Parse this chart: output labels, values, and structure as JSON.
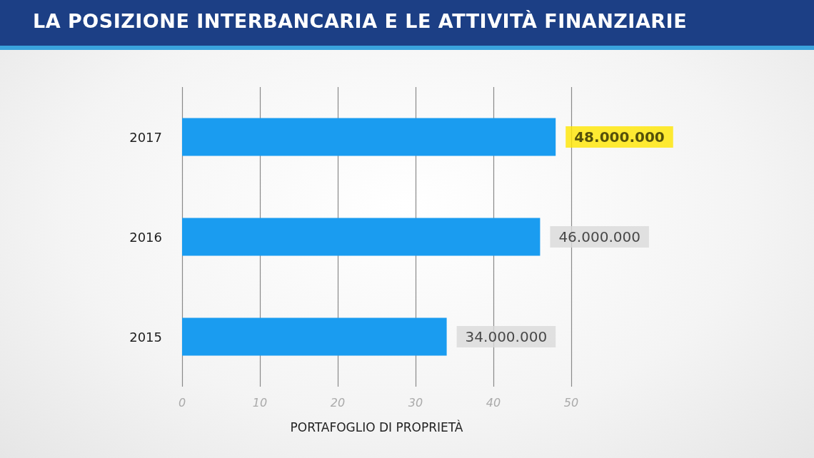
{
  "chart_data": {
    "type": "bar",
    "orientation": "horizontal",
    "title": "LA POSIZIONE INTERBANCARIA E LE ATTIVITÀ FINANZIARIE",
    "xlabel": "PORTAFOGLIO DI PROPRIETÀ",
    "categories": [
      "2017",
      "2016",
      "2015"
    ],
    "values": [
      48,
      46,
      34
    ],
    "annotations": [
      {
        "text": "48.000.000",
        "x": 48,
        "y": "2017"
      },
      {
        "text": "46.000.000",
        "x": 46,
        "y": "2016"
      },
      {
        "text": "34.000.000",
        "x": 34,
        "y": "2015"
      }
    ],
    "color": "#1a9cf0",
    "xlim": [
      0,
      50
    ],
    "xticks": [
      0,
      10,
      20,
      30,
      40,
      50
    ],
    "grid": "x"
  }
}
